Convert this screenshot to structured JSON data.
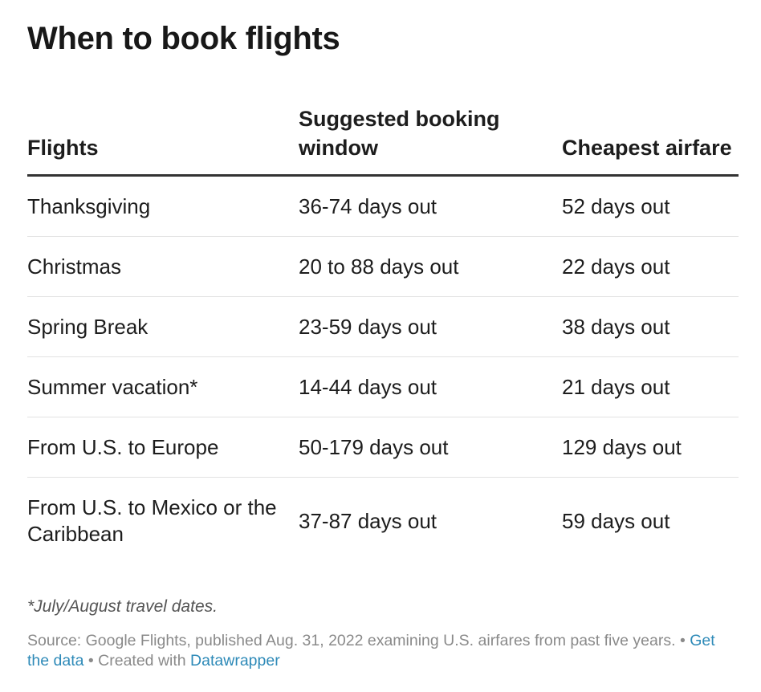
{
  "chart_data": {
    "type": "table",
    "title": "When to book flights",
    "columns": [
      "Flights",
      "Suggested booking window",
      "Cheapest airfare"
    ],
    "rows": [
      [
        "Thanksgiving",
        "36-74 days out",
        "52 days out"
      ],
      [
        "Christmas",
        "20 to 88 days out",
        "22 days out"
      ],
      [
        "Spring Break",
        "23-59 days out",
        "38 days out"
      ],
      [
        "Summer vacation*",
        "14-44 days out",
        "21 days out"
      ],
      [
        "From U.S. to Europe",
        "50-179 days out",
        "129 days out"
      ],
      [
        "From U.S. to Mexico or the Caribbean",
        "37-87 days out",
        "59 days out"
      ]
    ],
    "note": "*July/August travel dates.",
    "source": "Source: Google Flights, published Aug. 31, 2022 examining U.S. airfares from past five years.",
    "separator": "•",
    "get_data_label": "Get the data",
    "created_with_label": "Created with",
    "tool_label": "Datawrapper"
  },
  "colors": {
    "text": "#1d1d1d",
    "header_rule": "#333333",
    "row_rule": "#e2e2e2",
    "muted": "#8a8a8a",
    "link": "#2e8ab8"
  }
}
